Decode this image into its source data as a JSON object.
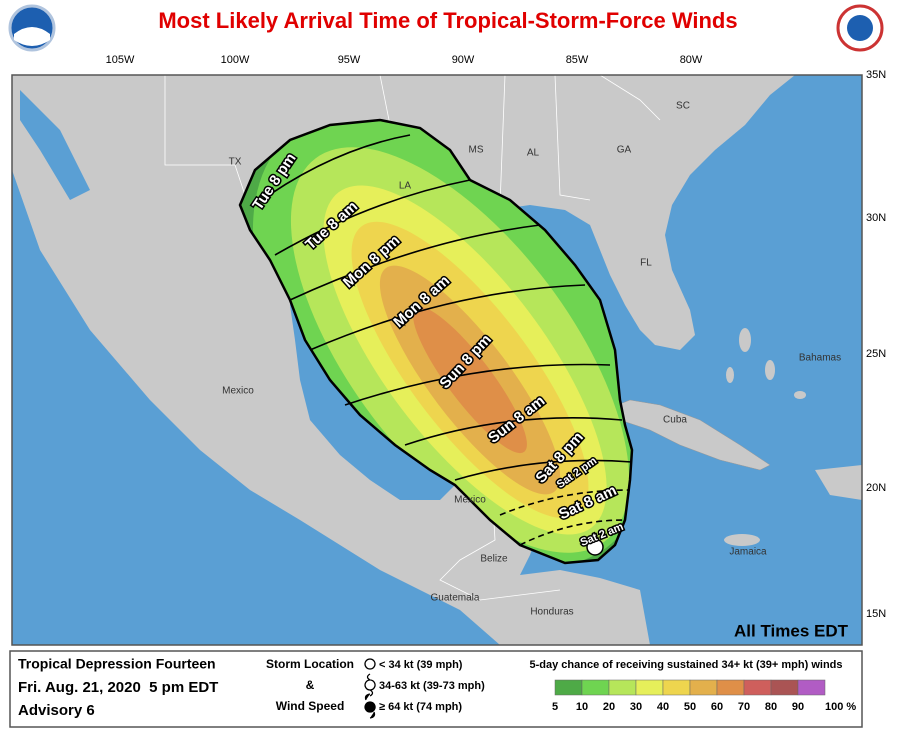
{
  "title": "Most Likely Arrival Time of Tropical-Storm-Force Winds",
  "map": {
    "lon_labels": [
      "105W",
      "100W",
      "95W",
      "90W",
      "85W",
      "80W"
    ],
    "lat_labels": [
      "35N",
      "30N",
      "25N",
      "20N",
      "15N"
    ],
    "place_labels": [
      "TX",
      "LA",
      "MS",
      "AL",
      "GA",
      "SC",
      "FL",
      "Mexico",
      "Mexico",
      "Cuba",
      "Bahamas",
      "Jamaica",
      "Belize",
      "Guatemala",
      "Honduras"
    ],
    "arrival_labels": [
      "Tue 8 pm",
      "Tue 8 am",
      "Mon 8 pm",
      "Mon 8 am",
      "Sun 8 pm",
      "Sun 8 am",
      "Sat 8 pm",
      "Sat 2 pm",
      "Sat 8 am",
      "Sat 2 am"
    ],
    "note": "All Times EDT"
  },
  "info": {
    "storm": "Tropical Depression Fourteen",
    "date": "Fri. Aug. 21, 2020  5 pm EDT",
    "advisory": "Advisory 6"
  },
  "key": {
    "heading": [
      "Storm Location",
      "&",
      "Wind Speed"
    ],
    "items": [
      "< 34 kt (39 mph)",
      "34-63 kt (39-73 mph)",
      "≥ 64 kt (74 mph)"
    ]
  },
  "probability": {
    "title": "5-day chance of receiving sustained 34+ kt (39+ mph) winds",
    "labels": [
      "5",
      "10",
      "20",
      "30",
      "40",
      "50",
      "60",
      "70",
      "80",
      "90",
      "100 %"
    ],
    "colors": [
      "#4eaa47",
      "#6fd451",
      "#b6e65a",
      "#e6ef5a",
      "#eed54e",
      "#e3b04c",
      "#df8f48",
      "#cf5f5c",
      "#aa5454",
      "#b15cc4"
    ]
  }
}
